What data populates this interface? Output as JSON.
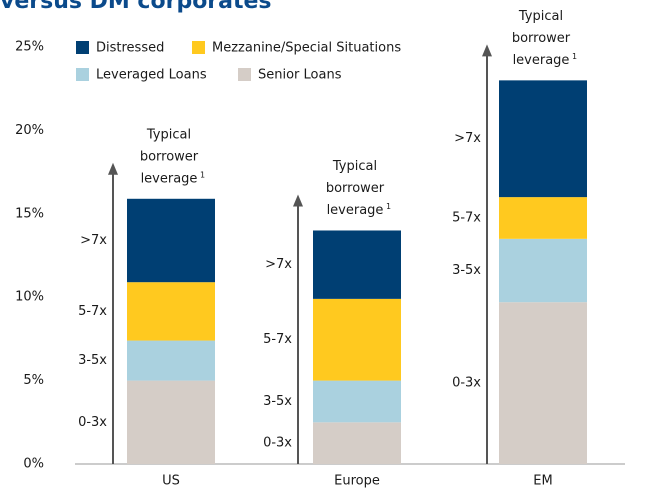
{
  "chart_data": {
    "type": "stacked_bar",
    "title": "versus DM corporates",
    "categories": [
      "US",
      "Europe",
      "EM"
    ],
    "series": [
      {
        "name": "Senior Loans",
        "color": "#d5cdc7",
        "values": [
          5,
          2.5,
          9.7
        ]
      },
      {
        "name": "Leveraged Loans",
        "color": "#aad1df",
        "values": [
          2.4,
          2.5,
          3.8
        ]
      },
      {
        "name": "Mezzanine/Special Situations",
        "color": "#ffc91f",
        "values": [
          3.5,
          4.9,
          2.5
        ]
      },
      {
        "name": "Distressed",
        "color": "#003f73",
        "values": [
          5,
          4.1,
          7.0
        ]
      }
    ],
    "ylim": [
      0,
      25
    ],
    "yticks": [
      {
        "value": 0,
        "label": "0%"
      },
      {
        "value": 5,
        "label": "5%"
      },
      {
        "value": 10,
        "label": "10%"
      },
      {
        "value": 15,
        "label": "15%"
      },
      {
        "value": 20,
        "label": "20%"
      },
      {
        "value": 25,
        "label": "25%"
      }
    ],
    "annotation": {
      "lines": [
        "Typical",
        "borrower",
        "leverage"
      ],
      "note": "1"
    },
    "leverage_labels": [
      "0-3x",
      "3-5x",
      "5-7x",
      ">7x"
    ]
  }
}
